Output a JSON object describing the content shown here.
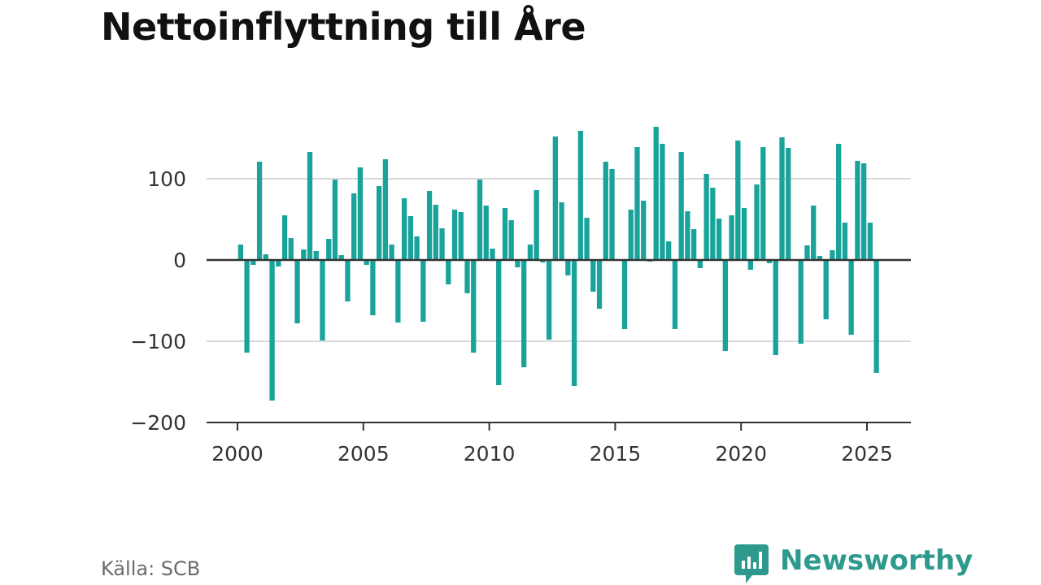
{
  "title": "Nettoinflyttning till Åre",
  "source": "Källa: SCB",
  "brand": {
    "name": "Newsworthy",
    "icon": "newsworthy-logo-icon",
    "color": "#2e9a8e"
  },
  "chart_data": {
    "type": "bar",
    "bar_color": "#1aa39a",
    "title": "Nettoinflyttning till Åre",
    "xlabel": "",
    "ylabel": "",
    "xlim": [
      1999,
      2026
    ],
    "ylim": [
      -200,
      180
    ],
    "y_ticks": [
      -200,
      -100,
      0,
      100
    ],
    "y_tick_labels": [
      "−200",
      "−100",
      "0",
      "100"
    ],
    "x_ticks": [
      2000,
      2005,
      2010,
      2015,
      2020,
      2025
    ],
    "x_tick_labels": [
      "2000",
      "2005",
      "2010",
      "2015",
      "2020",
      "2025"
    ],
    "grid": true,
    "legend": "none",
    "x": [
      2000.125,
      2000.375,
      2000.625,
      2000.875,
      2001.125,
      2001.375,
      2001.625,
      2001.875,
      2002.125,
      2002.375,
      2002.625,
      2002.875,
      2003.125,
      2003.375,
      2003.625,
      2003.875,
      2004.125,
      2004.375,
      2004.625,
      2004.875,
      2005.125,
      2005.375,
      2005.625,
      2005.875,
      2006.125,
      2006.375,
      2006.625,
      2006.875,
      2007.125,
      2007.375,
      2007.625,
      2007.875,
      2008.125,
      2008.375,
      2008.625,
      2008.875,
      2009.125,
      2009.375,
      2009.625,
      2009.875,
      2010.125,
      2010.375,
      2010.625,
      2010.875,
      2011.125,
      2011.375,
      2011.625,
      2011.875,
      2012.125,
      2012.375,
      2012.625,
      2012.875,
      2013.125,
      2013.375,
      2013.625,
      2013.875,
      2014.125,
      2014.375,
      2014.625,
      2014.875,
      2015.125,
      2015.375,
      2015.625,
      2015.875,
      2016.125,
      2016.375,
      2016.625,
      2016.875,
      2017.125,
      2017.375,
      2017.625,
      2017.875,
      2018.125,
      2018.375,
      2018.625,
      2018.875,
      2019.125,
      2019.375,
      2019.625,
      2019.875,
      2020.125,
      2020.375,
      2020.625,
      2020.875,
      2021.125,
      2021.375,
      2021.625,
      2021.875,
      2022.125,
      2022.375,
      2022.625,
      2022.875,
      2023.125,
      2023.375,
      2023.625,
      2023.875,
      2024.125,
      2024.375,
      2024.625,
      2024.875,
      2025.125,
      2025.375
    ],
    "values": [
      19,
      -114,
      -6,
      121,
      7,
      -173,
      -8,
      55,
      27,
      -78,
      13,
      133,
      11,
      -99,
      26,
      99,
      6,
      -51,
      82,
      114,
      -6,
      -68,
      91,
      124,
      19,
      -77,
      76,
      54,
      29,
      -76,
      85,
      68,
      39,
      -30,
      62,
      59,
      -41,
      -114,
      99,
      67,
      14,
      -154,
      64,
      49,
      -9,
      -132,
      19,
      86,
      -3,
      -98,
      152,
      71,
      -19,
      -155,
      159,
      52,
      -39,
      -60,
      121,
      112,
      0,
      -85,
      62,
      139,
      73,
      -2,
      164,
      143,
      23,
      -85,
      133,
      60,
      38,
      -10,
      106,
      89,
      51,
      -112,
      55,
      147,
      64,
      -12,
      93,
      139,
      -4,
      -117,
      151,
      138,
      0,
      -103,
      18,
      67,
      5,
      -73,
      12,
      143,
      46,
      -92,
      122,
      119,
      46,
      -139
    ]
  }
}
